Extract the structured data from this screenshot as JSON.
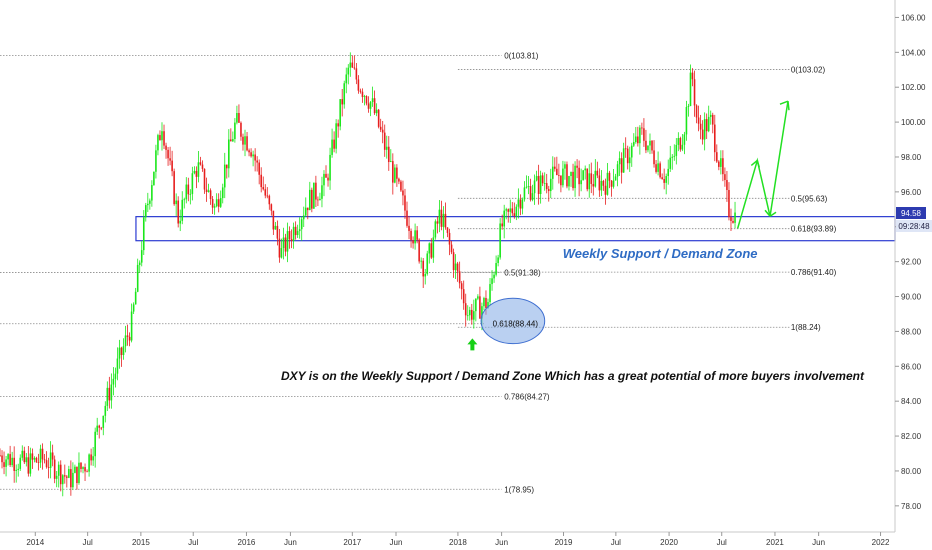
{
  "chart_data": {
    "type": "candlestick",
    "title": "",
    "xlabel": "",
    "ylabel": "",
    "ylim": [
      76.5,
      107.0
    ],
    "x_range": [
      "2013-09-01",
      "2022-02-20"
    ],
    "grid": false,
    "y_ticks": [
      "78.00",
      "80.00",
      "82.00",
      "84.00",
      "86.00",
      "88.00",
      "90.00",
      "92.00",
      "94.00",
      "96.00",
      "98.00",
      "100.00",
      "102.00",
      "104.00",
      "106.00"
    ],
    "x_ticks": [
      {
        "date": "2014-01-01",
        "label": "2014"
      },
      {
        "date": "2014-07-01",
        "label": "Jul"
      },
      {
        "date": "2015-01-01",
        "label": "2015"
      },
      {
        "date": "2015-07-01",
        "label": "Jul"
      },
      {
        "date": "2016-01-01",
        "label": "2016"
      },
      {
        "date": "2016-06-01",
        "label": "Jun"
      },
      {
        "date": "2017-01-01",
        "label": "2017"
      },
      {
        "date": "2017-06-01",
        "label": "Jun"
      },
      {
        "date": "2018-01-01",
        "label": "2018"
      },
      {
        "date": "2018-06-01",
        "label": "Jun"
      },
      {
        "date": "2019-01-01",
        "label": "2019"
      },
      {
        "date": "2019-07-01",
        "label": "Jul"
      },
      {
        "date": "2020-01-01",
        "label": "2020"
      },
      {
        "date": "2020-07-01",
        "label": "Jul"
      },
      {
        "date": "2021-01-01",
        "label": "2021"
      },
      {
        "date": "2021-06-01",
        "label": "Jun"
      },
      {
        "date": "2022-01-01",
        "label": "2022"
      }
    ],
    "price_path": [
      [
        "2013-09-01",
        80.9
      ],
      [
        "2013-12-01",
        80.4
      ],
      [
        "2014-02-01",
        80.7
      ],
      [
        "2014-05-01",
        79.5
      ],
      [
        "2014-07-01",
        80.5
      ],
      [
        "2014-10-01",
        85.5
      ],
      [
        "2014-12-01",
        88.5
      ],
      [
        "2015-01-15",
        94.5
      ],
      [
        "2015-03-15",
        100.0
      ],
      [
        "2015-05-10",
        94.5
      ],
      [
        "2015-07-15",
        97.5
      ],
      [
        "2015-09-15",
        95.0
      ],
      [
        "2015-11-25",
        100.0
      ],
      [
        "2016-01-20",
        98.5
      ],
      [
        "2016-05-01",
        92.5
      ],
      [
        "2016-08-01",
        95.5
      ],
      [
        "2016-10-01",
        96.5
      ],
      [
        "2016-12-20",
        103.2
      ],
      [
        "2017-03-10",
        101.0
      ],
      [
        "2017-06-01",
        96.5
      ],
      [
        "2017-09-10",
        91.5
      ],
      [
        "2017-11-01",
        94.8
      ],
      [
        "2018-02-05",
        89.0
      ],
      [
        "2018-04-15",
        89.7
      ],
      [
        "2018-06-01",
        94.0
      ],
      [
        "2018-08-15",
        96.0
      ],
      [
        "2018-12-15",
        97.0
      ],
      [
        "2019-06-01",
        96.5
      ],
      [
        "2019-09-30",
        99.3
      ],
      [
        "2019-12-20",
        96.8
      ],
      [
        "2020-02-20",
        99.5
      ],
      [
        "2020-03-20",
        102.8
      ],
      [
        "2020-04-10",
        99.5
      ],
      [
        "2020-05-25",
        100.0
      ],
      [
        "2020-06-25",
        97.5
      ],
      [
        "2020-07-25",
        95.0
      ],
      [
        "2020-08-20",
        94.6
      ]
    ],
    "last_price": "94.58",
    "countdown": "09:28:48",
    "fib_levels": [
      {
        "label": "0(103.81)",
        "value": 103.81,
        "from": "2013-09-01",
        "to": "2018-06-01",
        "label_at": "2018-06-10"
      },
      {
        "label": "0.5(91.38)",
        "value": 91.38,
        "from": "2013-09-01",
        "to": "2018-06-01",
        "label_at": "2018-06-10"
      },
      {
        "label": "0.786(84.27)",
        "value": 84.27,
        "from": "2013-09-01",
        "to": "2018-06-01",
        "label_at": "2018-06-10"
      },
      {
        "label": "1(78.95)",
        "value": 78.95,
        "from": "2013-09-01",
        "to": "2018-06-01",
        "label_at": "2018-06-10"
      },
      {
        "label": "0(103.02)",
        "value": 103.02,
        "from": "2018-01-01",
        "to": "2021-02-20",
        "label_at": "2021-02-25"
      },
      {
        "label": "0.5(95.63)",
        "value": 95.63,
        "from": "2018-01-01",
        "to": "2021-02-20",
        "label_at": "2021-02-25"
      },
      {
        "label": "0.618(93.89)",
        "value": 93.89,
        "from": "2018-01-01",
        "to": "2021-02-20",
        "label_at": "2021-02-25"
      },
      {
        "label": "0.786(91.40)",
        "value": 91.4,
        "from": "2018-01-01",
        "to": "2021-02-20",
        "label_at": "2021-02-25"
      },
      {
        "label": "1(88.24)",
        "value": 88.24,
        "from": "2018-01-01",
        "to": "2021-02-20",
        "label_at": "2021-02-25"
      },
      {
        "label": "0.618(88.44)",
        "value": 88.44,
        "from": "2013-09-01",
        "to": "2018-04-01",
        "label_at": "2018-05-01"
      }
    ],
    "zone": {
      "from": "2014-12-15",
      "to": "2022-02-20",
      "top": 94.58,
      "bottom": 93.2,
      "label": "Weekly Support / Demand Zone",
      "label_at": "2019-12-01",
      "label_y": 92.2
    },
    "ellipse": {
      "center": "2018-07-10",
      "y": 88.6,
      "x_radius_days": 110,
      "y_radius": 1.3
    },
    "projection": [
      [
        "2020-08-25",
        93.9
      ],
      [
        "2020-11-01",
        97.8
      ],
      [
        "2020-12-15",
        94.6
      ],
      [
        "2021-02-15",
        101.2
      ]
    ],
    "up_arrow": {
      "date": "2018-02-20",
      "y_tip": 87.6
    },
    "annotation": {
      "text": "DXY is on the Weekly Support / Demand Zone Which has a great potential of more buyers involvement",
      "at": "2019-02-01",
      "y": 85.2
    }
  }
}
